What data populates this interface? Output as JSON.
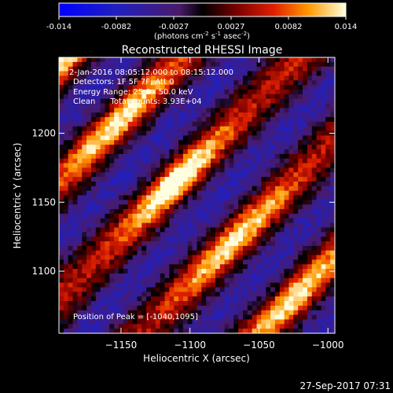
{
  "colorbar": {
    "ticks": [
      "-0.014",
      "-0.0082",
      "-0.0027",
      "0.0027",
      "0.0082",
      "0.014"
    ],
    "unit_parts": [
      "(photons cm",
      "-2",
      " s",
      "-1",
      " asec",
      "-2",
      ")"
    ]
  },
  "annotations": {
    "time_range": "2-Jan-2016 08:05:12.000 to 08:15:12.000",
    "detectors": "Detectors: 1F 5F 7F, Att 0",
    "energy": "Energy Range: 25.0 - 50.0 keV",
    "clean": "Clean      Total counts: 3.93E+04",
    "peak": "Position of Peak = [-1040,1095]"
  },
  "footer": {
    "timestamp": "27-Sep-2017 07:31"
  },
  "chart_data": {
    "type": "heatmap",
    "title": "Reconstructed RHESSI Image",
    "xlabel": "Heliocentric X (arcsec)",
    "ylabel": "Heliocentric Y (arcsec)",
    "xlim": [
      -1195,
      -995
    ],
    "ylim": [
      1055,
      1255
    ],
    "xticks": [
      -1150,
      -1100,
      -1050,
      -1000
    ],
    "yticks": [
      1100,
      1150,
      1200
    ],
    "color_range": [
      -0.014,
      0.014
    ],
    "colormap": "red-temperature (blue for negative)",
    "peak_position": [
      -1040,
      1095
    ],
    "pixel_grid": [
      60,
      60
    ],
    "fringe_pattern": {
      "description": "diagonal bright fringes from lower-left to upper-right",
      "fringe_direction_deg": 45,
      "spacing_arcsec": 60,
      "brightest_center": [
        -1110,
        1165
      ]
    }
  }
}
